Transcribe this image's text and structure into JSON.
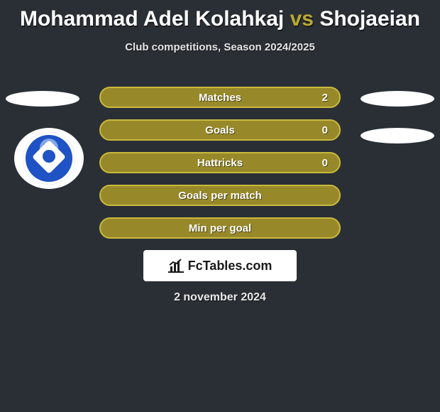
{
  "title": {
    "player1": "Mohammad Adel Kolahkaj",
    "vs": "vs",
    "player2": "Shojaeian"
  },
  "subtitle": "Club competitions, Season 2024/2025",
  "watermark": "FcTables.com",
  "date": "2 november 2024",
  "colors": {
    "background": "#2a2f36",
    "bar_fill": "#97892a",
    "bar_border": "#c9b93b",
    "vs_color": "#b9a82f",
    "text": "#ffffff",
    "badge_blue": "#1f52c4"
  },
  "stats": [
    {
      "label": "Matches",
      "value": "2",
      "has_value": true
    },
    {
      "label": "Goals",
      "value": "0",
      "has_value": true
    },
    {
      "label": "Hattricks",
      "value": "0",
      "has_value": true
    },
    {
      "label": "Goals per match",
      "value": "",
      "has_value": false
    },
    {
      "label": "Min per goal",
      "value": "",
      "has_value": false
    }
  ]
}
